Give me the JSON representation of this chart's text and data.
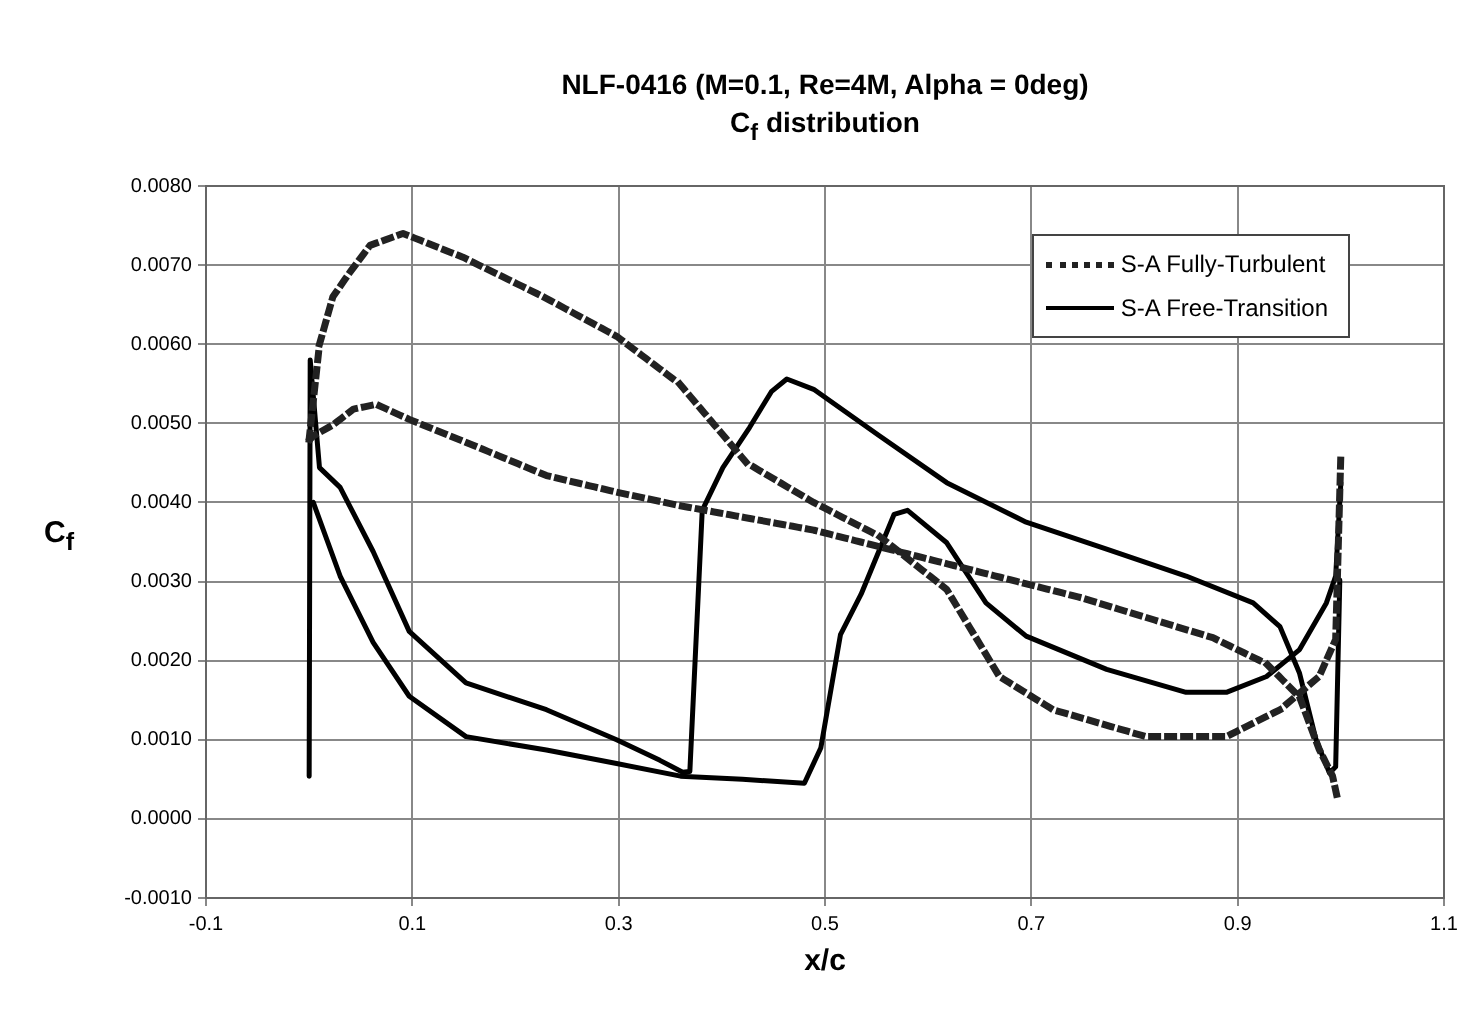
{
  "chart_data": {
    "type": "line",
    "title": "NLF-0416 (M=0.1, Re=4M, Alpha = 0deg)",
    "subtitle": "C$_{f}$ distribution",
    "xlabel": "x/c",
    "ylabel": "C$_{f}$",
    "xlim": [
      -0.1,
      1.1
    ],
    "xticks": [
      -0.1,
      0.1,
      0.3,
      0.5,
      0.7,
      0.9,
      1.1
    ],
    "ylim": [
      -0.001,
      0.008
    ],
    "yticks": [
      {
        "value": -0.001,
        "label": "-0.0010"
      },
      {
        "value": 0,
        "label": "0.0000"
      },
      {
        "value": 0.001,
        "label": "0.0010"
      },
      {
        "value": 0.002,
        "label": "0.0020"
      },
      {
        "value": 0.003,
        "label": "0.0030"
      },
      {
        "value": 0.004,
        "label": "0.0040"
      },
      {
        "value": 0.005,
        "label": "0.0050"
      },
      {
        "value": 0.006,
        "label": "0.0060"
      },
      {
        "value": 0.007,
        "label": "0.0070"
      },
      {
        "value": 0.008,
        "label": "0.0080"
      }
    ],
    "grid": true,
    "legend": "top right",
    "marker": "none",
    "series": [
      {
        "name": "S-A Fully-Turbulent",
        "color": "#222222",
        "line_style": "dotted",
        "x": [
          0.0,
          0.01,
          0.023,
          0.039,
          0.059,
          0.091,
          0.149,
          0.227,
          0.298,
          0.359,
          0.424,
          0.489,
          0.553,
          0.618,
          0.669,
          0.721,
          0.811,
          0.889,
          0.941,
          0.979,
          0.995,
          1.0
        ],
        "values": [
          0.0048,
          0.006,
          0.0066,
          0.0069,
          0.00725,
          0.0074,
          0.0071,
          0.0066,
          0.0061,
          0.0055,
          0.0045,
          0.004,
          0.00357,
          0.0029,
          0.0018,
          0.00138,
          0.00104,
          0.00104,
          0.00138,
          0.0018,
          0.00227,
          0.0046
        ]
      },
      {
        "color": "#222222",
        "line_style": "dotted",
        "x": [
          0.001,
          0.004,
          0.023,
          0.043,
          0.065,
          0.097,
          0.152,
          0.23,
          0.298,
          0.359,
          0.489,
          0.644,
          0.747,
          0.876,
          0.928,
          0.96,
          0.979,
          0.992,
          0.996
        ],
        "values": [
          0.0048,
          0.00484,
          0.00498,
          0.00518,
          0.00524,
          0.00505,
          0.00476,
          0.00434,
          0.00413,
          0.00396,
          0.00365,
          0.00314,
          0.0028,
          0.00229,
          0.00196,
          0.00154,
          0.00088,
          0.00054,
          0.0003
        ]
      },
      {
        "name": "S-A Free-Transition",
        "color": "#000000",
        "line_style": "solid",
        "x": [
          0.0,
          0.001,
          0.01,
          0.03,
          0.062,
          0.097,
          0.152,
          0.23,
          0.298,
          0.34,
          0.362,
          0.369,
          0.381,
          0.401,
          0.427,
          0.448,
          0.463,
          0.489,
          0.553,
          0.618,
          0.695,
          0.773,
          0.85,
          0.915,
          0.941,
          0.96,
          0.976,
          0.989,
          0.995,
          0.999
        ],
        "values": [
          0.00054,
          0.0058,
          0.00444,
          0.00419,
          0.00338,
          0.00237,
          0.00172,
          0.00138,
          0.001,
          0.00074,
          0.00059,
          0.0006,
          0.0039,
          0.00444,
          0.00495,
          0.0054,
          0.00556,
          0.00543,
          0.00484,
          0.00425,
          0.00375,
          0.00341,
          0.00307,
          0.00273,
          0.00243,
          0.00184,
          0.001,
          0.00058,
          0.00066,
          0.00302
        ]
      },
      {
        "color": "#000000",
        "line_style": "solid",
        "x": [
          0.004,
          0.03,
          0.062,
          0.097,
          0.152,
          0.23,
          0.298,
          0.36,
          0.42,
          0.48,
          0.496,
          0.515,
          0.535,
          0.567,
          0.58,
          0.618,
          0.656,
          0.695,
          0.773,
          0.85,
          0.889,
          0.928,
          0.96,
          0.986,
          0.995,
          1.0
        ],
        "values": [
          0.004,
          0.00307,
          0.00223,
          0.00155,
          0.00104,
          0.00087,
          0.0007,
          0.00054,
          0.0005,
          0.00045,
          0.0009,
          0.00233,
          0.00284,
          0.00385,
          0.0039,
          0.00349,
          0.00273,
          0.00231,
          0.00189,
          0.0016,
          0.0016,
          0.0018,
          0.00214,
          0.00273,
          0.00307,
          0.00425
        ]
      }
    ]
  }
}
